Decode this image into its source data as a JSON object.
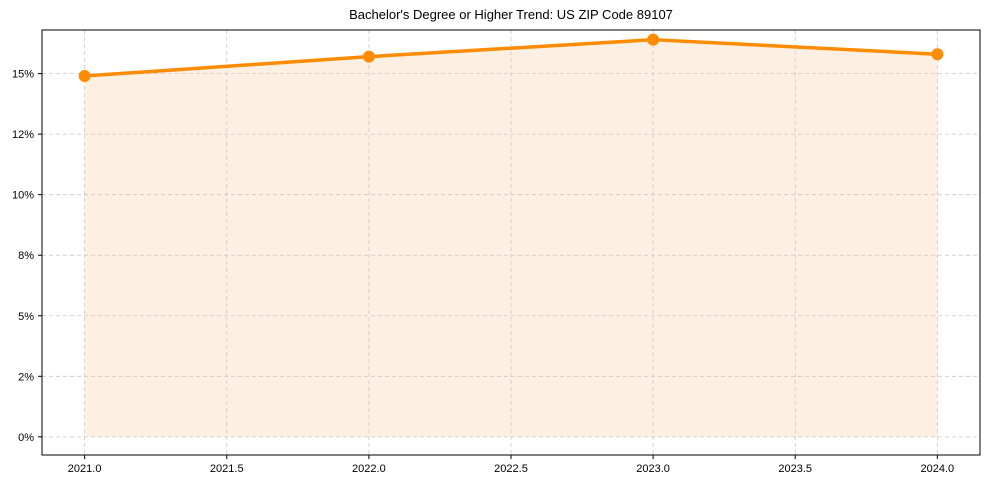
{
  "chart_data": {
    "type": "line",
    "title": "Bachelor's Degree or Higher Trend: US ZIP Code 89107",
    "xlabel": "",
    "ylabel": "",
    "x": [
      2021,
      2022,
      2023,
      2024
    ],
    "series": [
      {
        "name": "Bachelor's Degree or Higher",
        "values": [
          14.9,
          15.7,
          16.4,
          15.8
        ],
        "color": "#ff8c00",
        "fill_color": "#fdf0e2",
        "marker": "circle"
      }
    ],
    "xlim": [
      2020.85,
      2024.15
    ],
    "ylim": [
      -0.75,
      16.8
    ],
    "x_ticks": [
      2021.0,
      2021.5,
      2022.0,
      2022.5,
      2023.0,
      2023.5,
      2024.0
    ],
    "x_tick_labels": [
      "2021.0",
      "2021.5",
      "2022.0",
      "2022.5",
      "2023.0",
      "2023.5",
      "2024.0"
    ],
    "y_ticks": [
      0,
      2.5,
      5,
      7.5,
      10,
      12.5,
      15
    ],
    "y_tick_labels": [
      "0%",
      "2%",
      "5%",
      "8%",
      "10%",
      "12%",
      "15%"
    ],
    "grid": true,
    "legend": null
  }
}
